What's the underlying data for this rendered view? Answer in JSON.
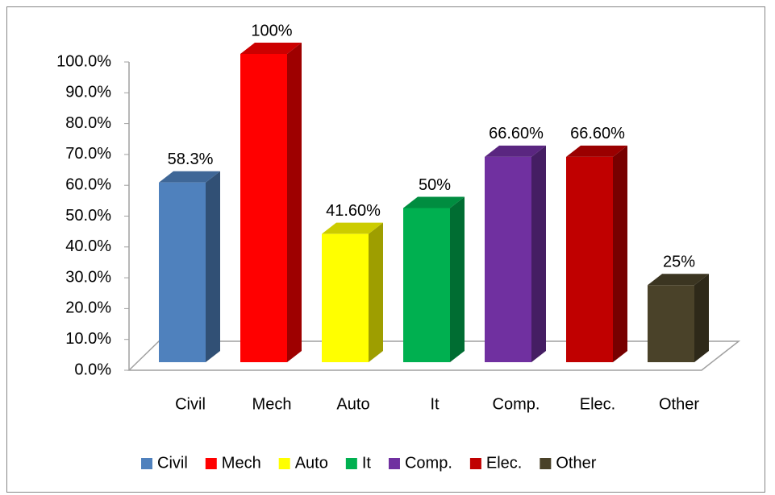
{
  "chart_data": {
    "type": "bar3d",
    "categories": [
      "Civil",
      "Mech",
      "Auto",
      "It",
      "Comp.",
      "Elec.",
      "Other"
    ],
    "values": [
      58.3,
      100,
      41.6,
      50,
      66.6,
      66.6,
      25
    ],
    "value_labels": [
      "58.3%",
      "100%",
      "41.60%",
      "50%",
      "66.60%",
      "66.60%",
      "25%"
    ],
    "colors": [
      "#4f81bd",
      "#ff0000",
      "#ffff00",
      "#00b050",
      "#7030a0",
      "#c00000",
      "#4a4229"
    ],
    "ylim": [
      0,
      100
    ],
    "yticks": [
      {
        "value": 0,
        "label": "0.0%"
      },
      {
        "value": 10,
        "label": "10.0%"
      },
      {
        "value": 20,
        "label": "20.0%"
      },
      {
        "value": 30,
        "label": "30.0%"
      },
      {
        "value": 40,
        "label": "40.0%"
      },
      {
        "value": 50,
        "label": "50.0%"
      },
      {
        "value": 60,
        "label": "60.0%"
      },
      {
        "value": 70,
        "label": "70.0%"
      },
      {
        "value": 80,
        "label": "80.0%"
      },
      {
        "value": 90,
        "label": "90.0%"
      },
      {
        "value": 100,
        "label": "100.0%"
      }
    ],
    "legend": "bottom"
  }
}
